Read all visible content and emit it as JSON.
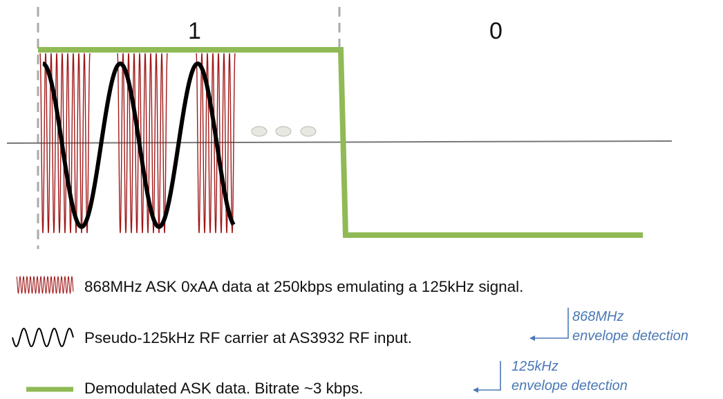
{
  "bits": {
    "one": "1",
    "zero": "0"
  },
  "legend": {
    "rf_868": "868MHz ASK 0xAA data at 250kbps emulating a 125kHz signal.",
    "carrier_125": "Pseudo-125kHz RF carrier at AS3932 RF input.",
    "demodulated": "Demodulated ASK data. Bitrate ~3 kbps."
  },
  "notes": {
    "env868_line1": "868MHz",
    "env868_line2": "envelope detection",
    "env125_line1": "125kHz",
    "env125_line2": "envelope detection"
  },
  "colors": {
    "rf_red": "#a01818",
    "carrier_black": "#000000",
    "data_green": "#8fba55",
    "annotation_blue": "#4a78b5",
    "axis_gray": "#777777",
    "ellipsis_fill": "#e8e8e2"
  }
}
